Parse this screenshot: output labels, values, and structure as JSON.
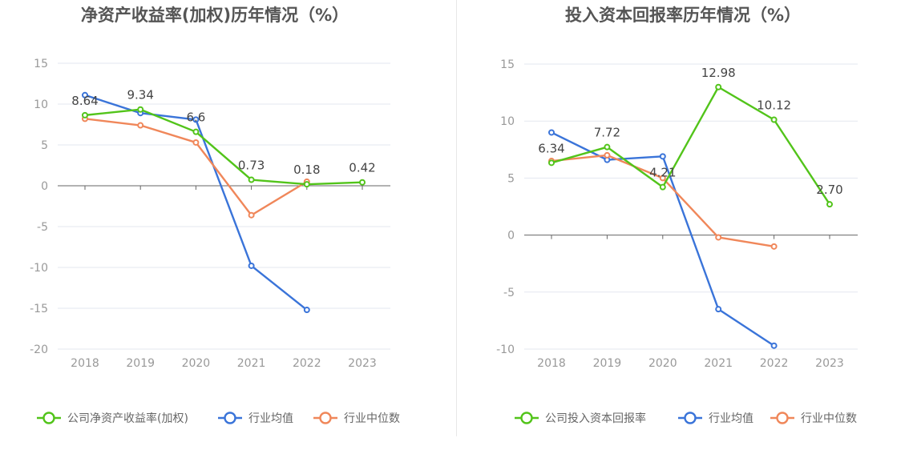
{
  "colors": {
    "company": "#52c41a",
    "avg": "#3a74d9",
    "median": "#f0875a",
    "grid": "#e3e7ef",
    "axis": "#666666",
    "tick": "#999999",
    "title": "#555555",
    "label": "#444444"
  },
  "chart_data": [
    {
      "type": "line",
      "title": "净资产收益率(加权)历年情况（%）",
      "categories": [
        "2018",
        "2019",
        "2020",
        "2021",
        "2022",
        "2023"
      ],
      "ylim": [
        -20,
        15
      ],
      "yticks": [
        15,
        10,
        5,
        0,
        -5,
        -10,
        -15,
        -20
      ],
      "series": [
        {
          "name": "公司净资产收益率(加权)",
          "role": "company",
          "values": [
            8.64,
            9.34,
            6.6,
            0.73,
            0.18,
            0.42
          ],
          "labels": [
            "8.64",
            "9.34",
            "6.6",
            "0.73",
            "0.18",
            "0.42"
          ]
        },
        {
          "name": "行业均值",
          "role": "avg",
          "values": [
            11.1,
            8.9,
            8.1,
            -9.8,
            -15.2,
            null
          ]
        },
        {
          "name": "行业中位数",
          "role": "median",
          "values": [
            8.2,
            7.4,
            5.3,
            -3.6,
            0.5,
            null
          ]
        }
      ],
      "legend": "bottom"
    },
    {
      "type": "line",
      "title": "投入资本回报率历年情况（%）",
      "categories": [
        "2018",
        "2019",
        "2020",
        "2021",
        "2022",
        "2023"
      ],
      "ylim": [
        -10,
        15
      ],
      "yticks": [
        15,
        10,
        5,
        0,
        -5,
        -10
      ],
      "series": [
        {
          "name": "公司投入资本回报率",
          "role": "company",
          "values": [
            6.34,
            7.72,
            4.21,
            12.98,
            10.12,
            2.7
          ],
          "labels": [
            "6.34",
            "7.72",
            "4.21",
            "12.98",
            "10.12",
            "2.70"
          ]
        },
        {
          "name": "行业均值",
          "role": "avg",
          "values": [
            9.0,
            6.6,
            6.9,
            -6.5,
            -9.7,
            null
          ]
        },
        {
          "name": "行业中位数",
          "role": "median",
          "values": [
            6.5,
            7.0,
            5.0,
            -0.2,
            -1.0,
            null
          ]
        }
      ],
      "legend": "bottom"
    }
  ]
}
